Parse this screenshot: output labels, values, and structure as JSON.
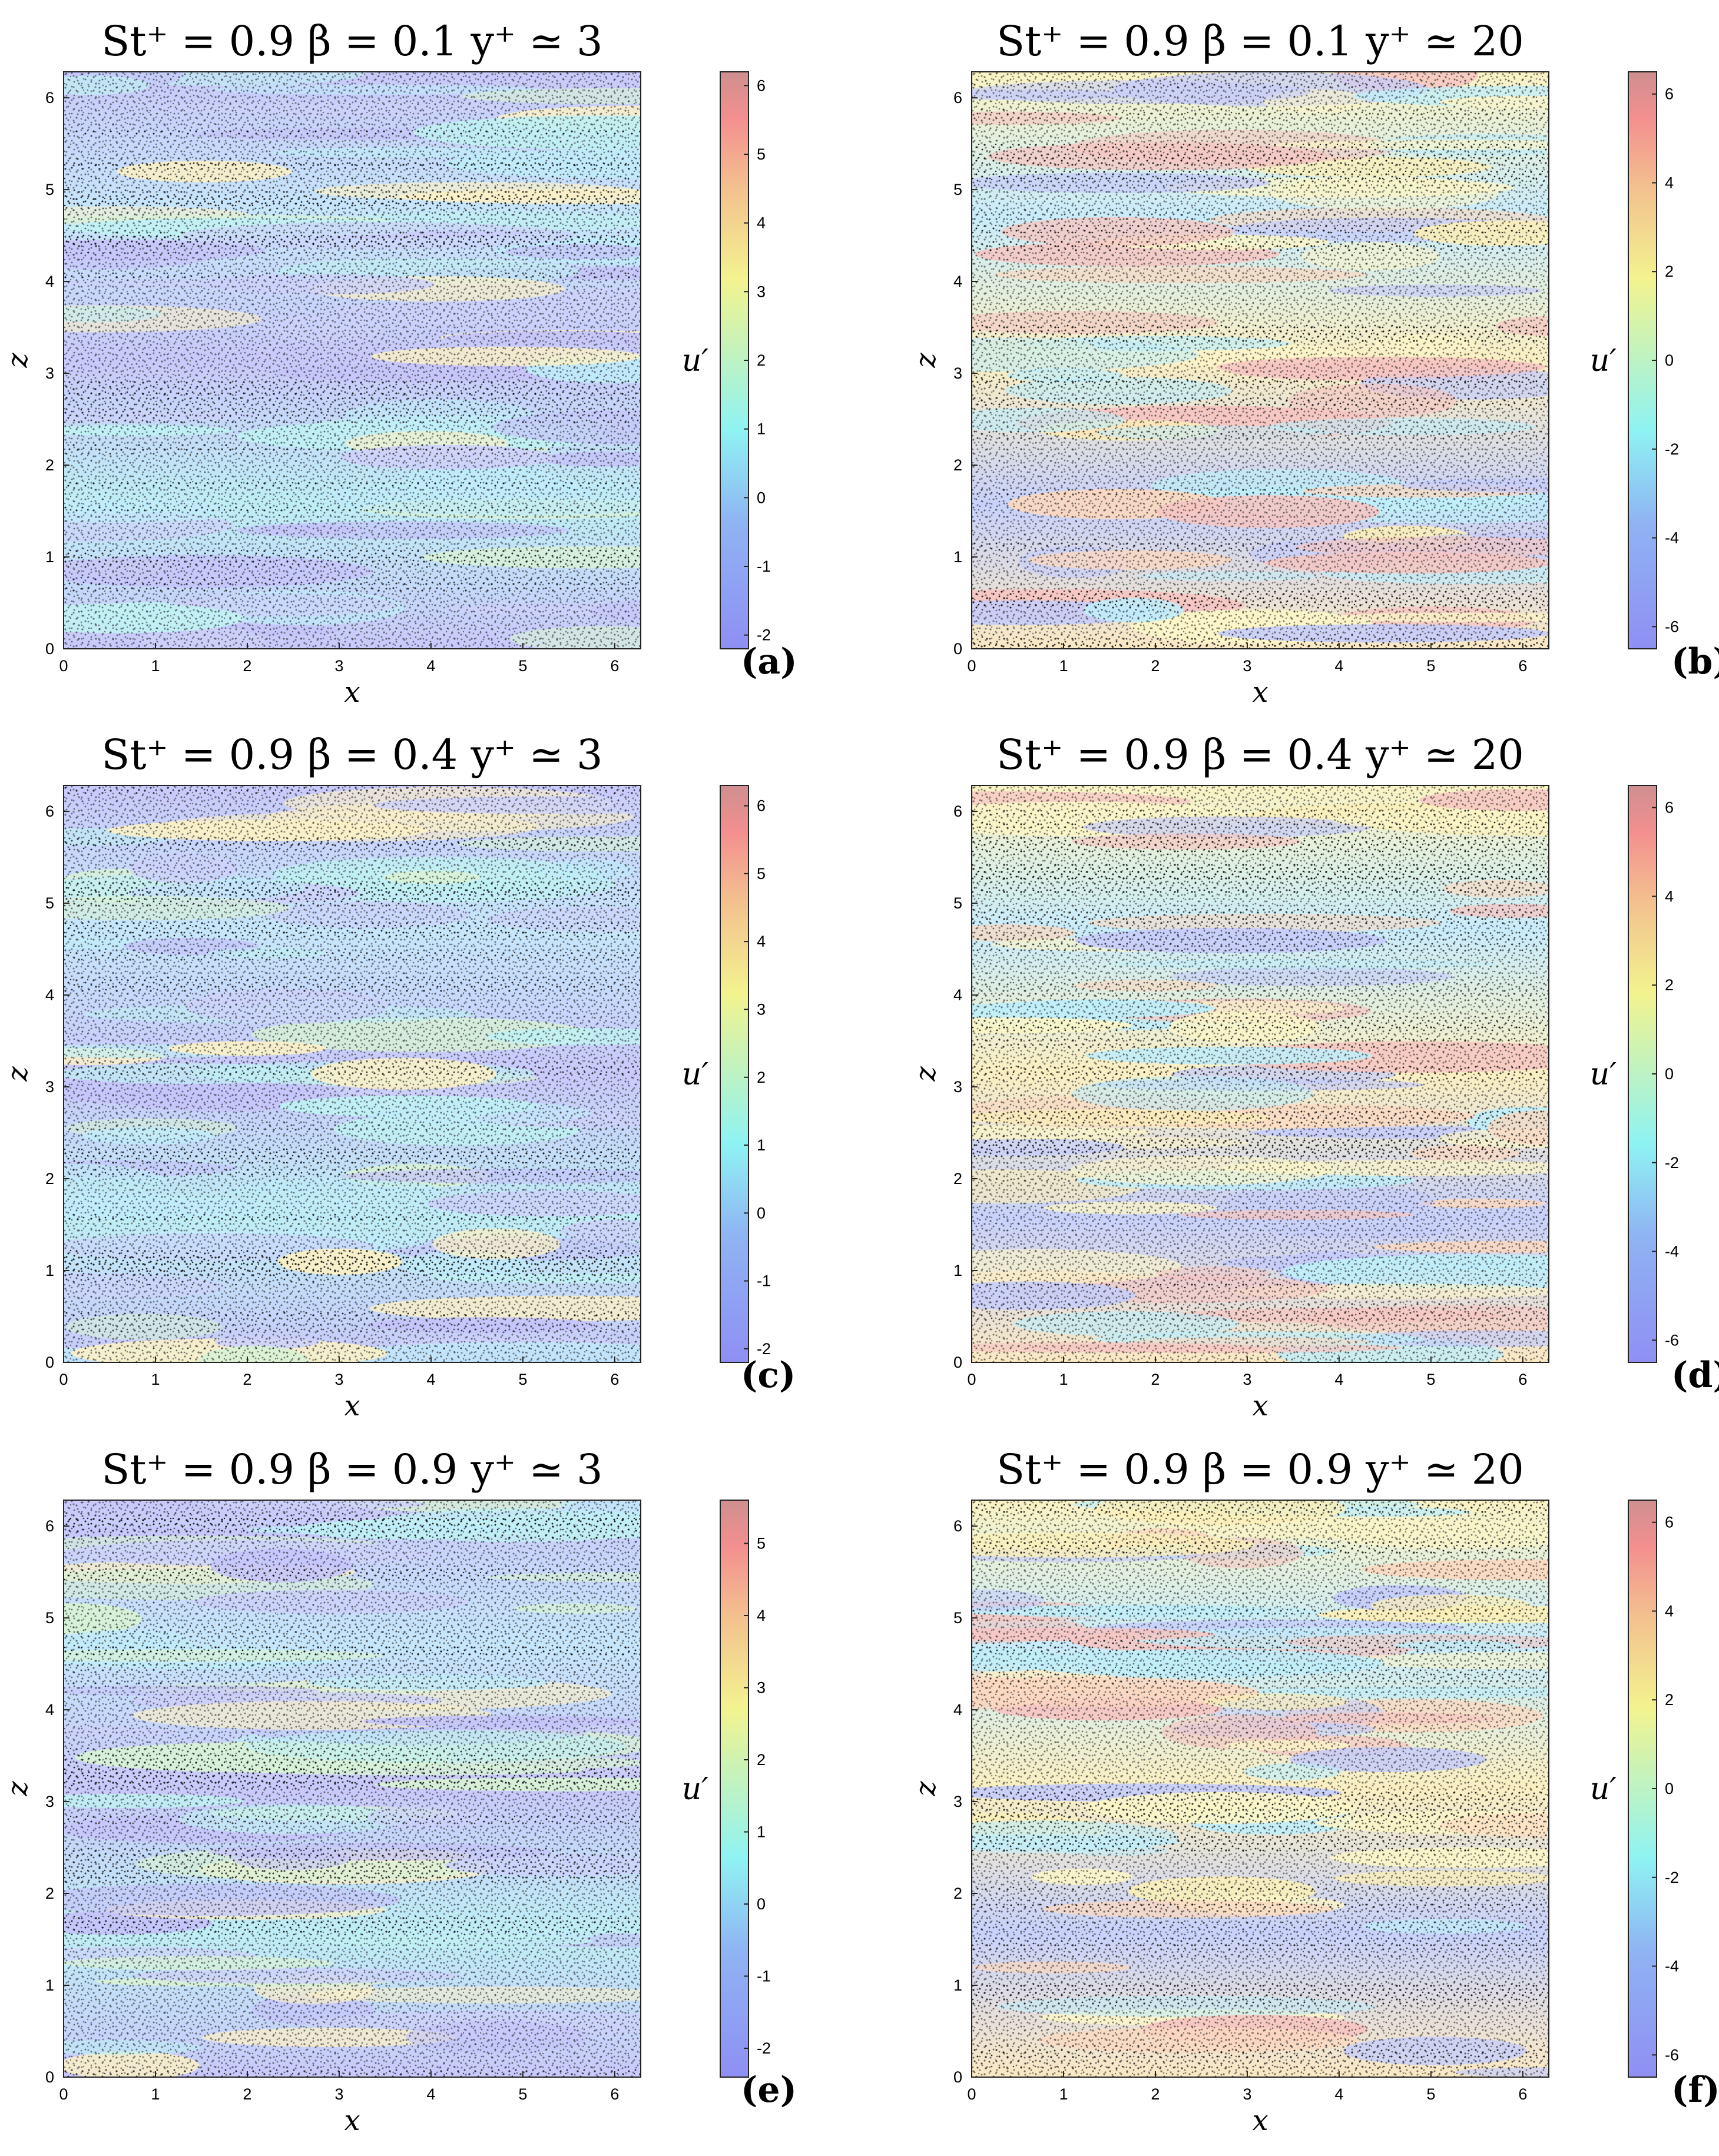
{
  "figure": {
    "panels": [
      {
        "id": "a",
        "tag": "(a)",
        "title": "St⁺ = 0.9   β = 0.1   y⁺ ≃ 3",
        "cb_label": "u′",
        "cb_ticks": [
          "6",
          "5",
          "4",
          "3",
          "2",
          "1",
          "0",
          "-1",
          "-2"
        ],
        "cb_range": [
          -2.2,
          6.2
        ]
      },
      {
        "id": "b",
        "tag": "(b)",
        "title": "St⁺ = 0.9   β = 0.1   y⁺ ≃ 20",
        "cb_label": "u′",
        "cb_ticks": [
          "6",
          "4",
          "2",
          "0",
          "-2",
          "-4",
          "-6"
        ],
        "cb_range": [
          -6.5,
          6.5
        ]
      },
      {
        "id": "c",
        "tag": "(c)",
        "title": "St⁺ = 0.9   β = 0.4   y⁺ ≃ 3",
        "cb_label": "u′",
        "cb_ticks": [
          "6",
          "5",
          "4",
          "3",
          "2",
          "1",
          "0",
          "-1",
          "-2"
        ],
        "cb_range": [
          -2.2,
          6.3
        ]
      },
      {
        "id": "d",
        "tag": "(d)",
        "title": "St⁺ = 0.9   β = 0.4   y⁺ ≃ 20",
        "cb_label": "u′",
        "cb_ticks": [
          "6",
          "4",
          "2",
          "0",
          "-2",
          "-4",
          "-6"
        ],
        "cb_range": [
          -6.5,
          6.5
        ]
      },
      {
        "id": "e",
        "tag": "(e)",
        "title": "St⁺ = 0.9   β = 0.9   y⁺ ≃ 3",
        "cb_label": "u′",
        "cb_ticks": [
          "5",
          "4",
          "3",
          "2",
          "1",
          "0",
          "-1",
          "-2"
        ],
        "cb_range": [
          -2.4,
          5.6
        ]
      },
      {
        "id": "f",
        "tag": "(f)",
        "title": "St⁺ = 0.9   β = 0.9   y⁺ ≃ 20",
        "cb_label": "u′",
        "cb_ticks": [
          "6",
          "4",
          "2",
          "0",
          "-2",
          "-4",
          "-6"
        ],
        "cb_range": [
          -6.5,
          6.5
        ]
      }
    ],
    "x_axis": {
      "label": "x",
      "ticks": [
        "0",
        "1",
        "2",
        "3",
        "4",
        "5",
        "6"
      ],
      "range": [
        0,
        6.2832
      ]
    },
    "z_axis": {
      "label": "z",
      "ticks": [
        "0",
        "1",
        "2",
        "3",
        "4",
        "5",
        "6"
      ],
      "range": [
        0,
        6.2832
      ]
    },
    "colormap": [
      "#8f8ff3",
      "#8fb0f3",
      "#8ff3f3",
      "#c4f3b7",
      "#f3f38f",
      "#f3c48f",
      "#f38f8f",
      "#d78f8f"
    ]
  }
}
